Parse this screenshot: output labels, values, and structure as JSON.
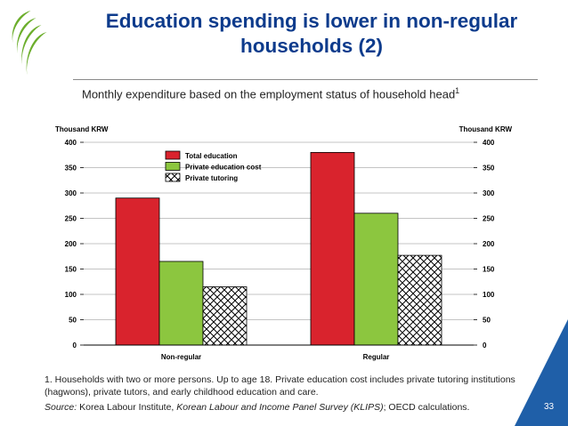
{
  "header": {
    "title": "Education spending is lower in non-regular households (2)",
    "subtitle": "Monthly expenditure based on the employment status of household head",
    "subtitle_note": "1"
  },
  "chart_data": {
    "type": "bar",
    "categories": [
      "Non-regular",
      "Regular"
    ],
    "series": [
      {
        "name": "Total education",
        "values": [
          290,
          380
        ],
        "color": "#d9232d",
        "pattern": "solid"
      },
      {
        "name": "Private education cost",
        "values": [
          165,
          260
        ],
        "color": "#8cc63f",
        "pattern": "solid"
      },
      {
        "name": "Private tutoring",
        "values": [
          115,
          177
        ],
        "color": "#ffffff",
        "pattern": "crosshatch"
      }
    ],
    "ylabel_left": "Thousand KRW",
    "ylabel_right": "Thousand KRW",
    "ylim": [
      0,
      400
    ],
    "yticks": [
      0,
      50,
      100,
      150,
      200,
      250,
      300,
      350,
      400
    ],
    "grid": true,
    "legend": "top-center"
  },
  "footer": {
    "footnote": "1. Households with two or more persons. Up to age 18. Private education cost includes private tutoring institutions (hagwons), private tutors, and early childhood education and care.",
    "source_label": "Source:",
    "source_text_1": " Korea Labour Institute, ",
    "source_italic": "Korean Labour and Income Panel Survey (KLIPS)",
    "source_text_2": "; OECD calculations.",
    "page_number": "33"
  },
  "colors": {
    "title": "#0d3b8c",
    "logo_green": "#6cae2c",
    "corner_blue": "#1f5fa8"
  }
}
